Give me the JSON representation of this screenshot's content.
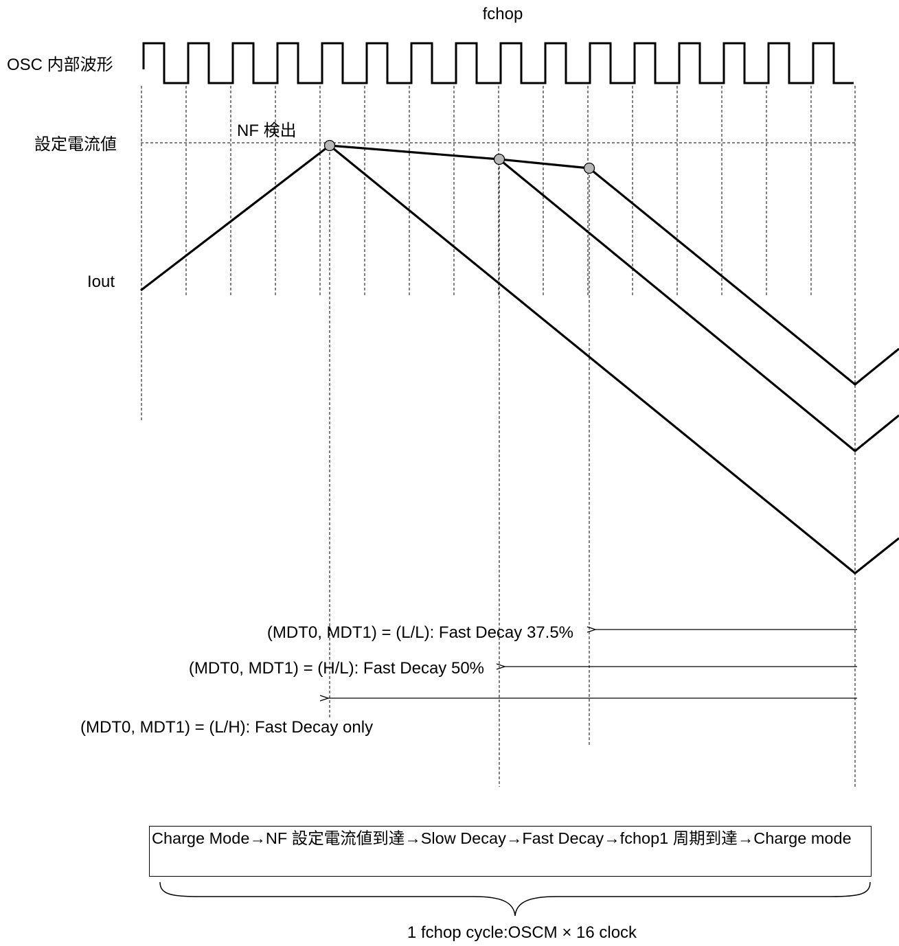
{
  "diagram": {
    "fchop_label": "fchop",
    "osc_label": "OSC  内部波形",
    "set_current_label": "設定電流値",
    "nf_detect_label": "NF 検出",
    "iout_label": "Iout",
    "modes": [
      {
        "label": "(MDT0, MDT1) = (L/L): Fast Decay 37.5%"
      },
      {
        "label": "(MDT0, MDT1) = (H/L): Fast Decay 50%"
      },
      {
        "label": "(MDT0, MDT1) = (L/H): Fast Decay only"
      }
    ],
    "sequence_note": "Charge Mode→NF 設定電流値到達→Slow Decay→Fast Decay→fchop1 周期到達→Charge mode",
    "cycle_label": "1 fchop cycle:OSCM × 16 clock",
    "osc_clock_count": 16
  }
}
